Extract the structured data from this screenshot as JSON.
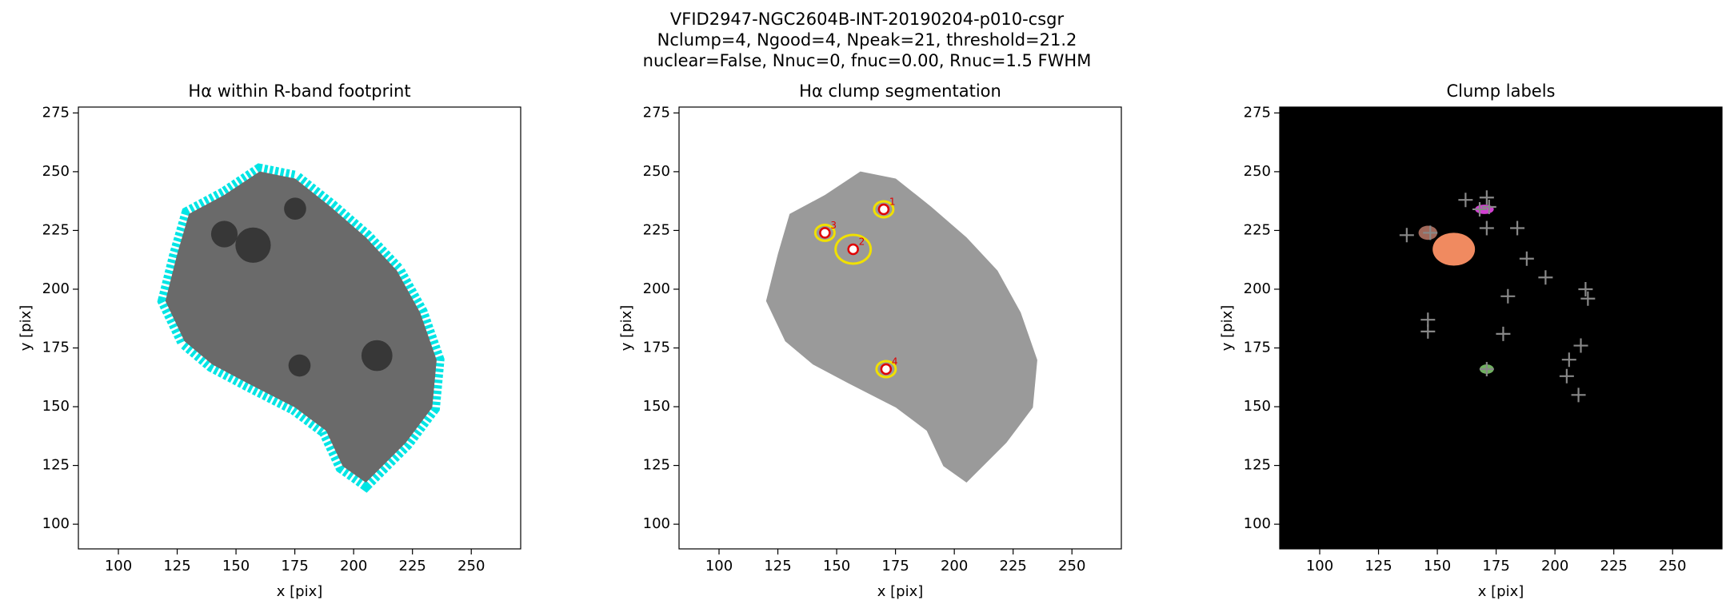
{
  "title": [
    "VFID2947-NGC2604B-INT-20190204-p010-csgr",
    "Nclump=4, Ngood=4, Npeak=21, threshold=21.2",
    "nuclear=False, Nnuc=0, fnuc=0.00, Rnuc=1.5 FWHM"
  ],
  "chart_data": [
    {
      "type": "image",
      "title": "Hα within R-band footprint",
      "xlabel": "x [pix]",
      "ylabel": "y [pix]",
      "xlim": [
        83,
        271
      ],
      "ylim": [
        89.5,
        277.5
      ],
      "xticks": [
        100,
        125,
        150,
        175,
        200,
        225,
        250
      ],
      "yticks": [
        100,
        125,
        150,
        175,
        200,
        225,
        250,
        275
      ],
      "background": "#ffffff",
      "color": "#00e5e5"
    },
    {
      "type": "scatter",
      "title": "Hα clump segmentation",
      "xlabel": "x [pix]",
      "ylabel": "y [pix]",
      "xlim": [
        83,
        271
      ],
      "ylim": [
        89.5,
        277.5
      ],
      "xticks": [
        100,
        125,
        150,
        175,
        200,
        225,
        250
      ],
      "yticks": [
        100,
        125,
        150,
        175,
        200,
        225,
        250,
        275
      ],
      "background": "#ffffff",
      "color": "#e00000",
      "x": [
        170,
        157,
        145,
        171
      ],
      "y": [
        234,
        217,
        224,
        166
      ],
      "labels": [
        "1",
        "2",
        "3",
        "4"
      ]
    },
    {
      "type": "scatter",
      "title": "Clump labels",
      "xlabel": "x [pix]",
      "ylabel": "y [pix]",
      "xlim": [
        83,
        271
      ],
      "ylim": [
        89.5,
        277.5
      ],
      "xticks": [
        100,
        125,
        150,
        175,
        200,
        225,
        250
      ],
      "yticks": [
        100,
        125,
        150,
        175,
        200,
        225,
        250,
        275
      ],
      "background": "#000000",
      "color": "#888888",
      "x": [
        162,
        171,
        172,
        168,
        137,
        147,
        171,
        184,
        188,
        196,
        180,
        213,
        214,
        146,
        146,
        178,
        211,
        206,
        205,
        171,
        210
      ],
      "y": [
        238,
        239,
        235,
        234,
        223,
        224,
        226,
        226,
        213,
        205,
        197,
        200,
        196,
        187,
        182,
        181,
        176,
        170,
        163,
        166,
        155
      ]
    }
  ]
}
